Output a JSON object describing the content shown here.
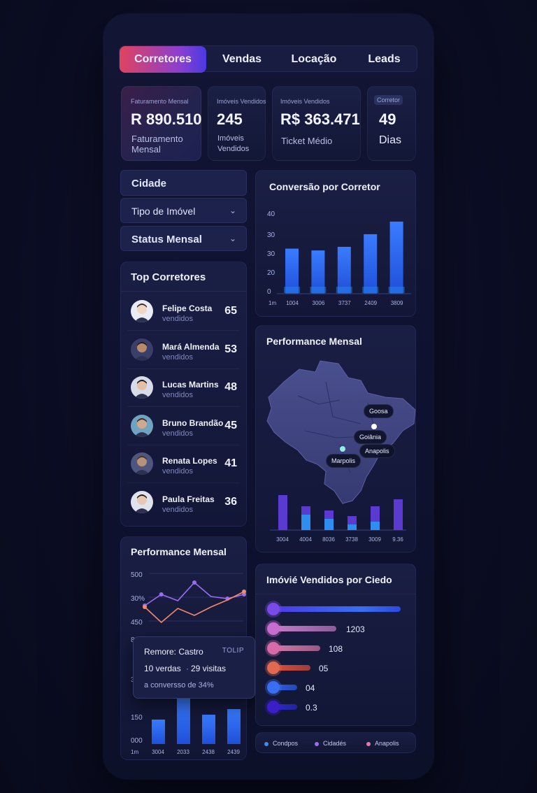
{
  "tabs": [
    {
      "label": "Corretores",
      "active": true
    },
    {
      "label": "Vendas",
      "active": false
    },
    {
      "label": "Locação",
      "active": false
    },
    {
      "label": "Leads",
      "active": false
    }
  ],
  "kpis": [
    {
      "label": "Faturamento Mensal",
      "value": "R 890.510",
      "sub": "Faturamento Mensal"
    },
    {
      "label": "Imóveis Vendidos",
      "value": "245",
      "sub": "Imóveis Vendidos"
    },
    {
      "label": "Imóveis Vendidos",
      "value": "R$ 363.471",
      "sub": "Ticket Médio"
    },
    {
      "label": "Corretor",
      "value": "49",
      "sub": "Dias"
    }
  ],
  "filters": {
    "title": "Cidade",
    "options": [
      "Tipo de Imóvel",
      "Status Mensal"
    ]
  },
  "top_brokers": {
    "title": "Top Corretores",
    "items": [
      {
        "name": "Felipe Costa",
        "sub": "vendidos",
        "value": "65"
      },
      {
        "name": "Mará Almenda",
        "sub": "vendidos",
        "value": "53"
      },
      {
        "name": "Lucas Martins",
        "sub": "vendidos",
        "value": "48"
      },
      {
        "name": "Bruno Brandão",
        "sub": "vendidos",
        "value": "45"
      },
      {
        "name": "Renata Lopes",
        "sub": "vendidos",
        "value": "41"
      },
      {
        "name": "Paula Freitas",
        "sub": "vendidos",
        "value": "36"
      }
    ]
  },
  "conversion_chart": {
    "title": "Conversão por Corretor",
    "chart_data": {
      "type": "bar",
      "y_ticks": [
        "40",
        "30",
        "30",
        "20",
        "0"
      ],
      "x_start_label": "1m",
      "categories": [
        "1004",
        "3006",
        "3737",
        "2409",
        "3809"
      ],
      "values": [
        25,
        24,
        26,
        33,
        40
      ],
      "ylim": [
        0,
        45
      ]
    }
  },
  "map_panel": {
    "title": "Performance Mensal",
    "labels": [
      "Goosa",
      "Goiânia",
      "Anapolis",
      "Marpolis"
    ],
    "chart_data": {
      "type": "bar",
      "categories": [
        "3004",
        "4004",
        "8036",
        "3738",
        "3009",
        "9.36"
      ],
      "series": [
        {
          "values": [
            50,
            34,
            28,
            20,
            34,
            44
          ],
          "color": "#5a3ad0"
        },
        {
          "values": [
            0,
            22,
            16,
            8,
            12,
            0
          ],
          "color": "#2f8df0"
        }
      ]
    }
  },
  "line_panel": {
    "title": "Performance Mensal",
    "y_ticks": [
      "500",
      "30%",
      "450",
      "8"
    ],
    "lower_ticks": [
      "3",
      "150",
      "000"
    ],
    "x_start_label": "1m",
    "chart_data": {
      "type": "line",
      "series": [
        {
          "color": "#9a6cf0",
          "values": [
            42,
            58,
            49,
            75,
            55,
            52,
            58
          ]
        },
        {
          "color": "#f08a6a",
          "values": [
            40,
            18,
            38,
            28,
            40,
            50,
            62
          ]
        }
      ]
    },
    "bars": {
      "categories": [
        "3004",
        "2033",
        "2438",
        "2439"
      ],
      "values": [
        35,
        65,
        42,
        50
      ]
    }
  },
  "tooltip": {
    "name": "Remore: Castro",
    "tag": "TOLIP",
    "sales": "10 verdas",
    "visits": "29 visitas",
    "conversion": "a conversso de 34%"
  },
  "sold_by_city": {
    "title": "Imóvié Vendidos por Ciedo",
    "items": [
      {
        "value": "",
        "fill": 1.0,
        "color": "#3b5bf0",
        "dot": "#7a4ae8"
      },
      {
        "value": "1203",
        "fill": 0.5,
        "color": "#c77dc8",
        "dot": "#c86dd0"
      },
      {
        "value": "108",
        "fill": 0.38,
        "color": "#d77aa8",
        "dot": "#d76aa8"
      },
      {
        "value": "05",
        "fill": 0.3,
        "color": "#e0503a",
        "dot": "#e06a50"
      },
      {
        "value": "04",
        "fill": 0.2,
        "color": "#2f5ff0",
        "dot": "#3a6ef0"
      },
      {
        "value": "0.3",
        "fill": 0.2,
        "color": "#2a2ad0",
        "dot": "#3a1ec8"
      }
    ]
  },
  "legend": [
    {
      "label": "Condpos",
      "color": "#3a8cf0"
    },
    {
      "label": "Cidadés",
      "color": "#9a6cf0"
    },
    {
      "label": "Anapolis",
      "color": "#e07ab0"
    }
  ]
}
